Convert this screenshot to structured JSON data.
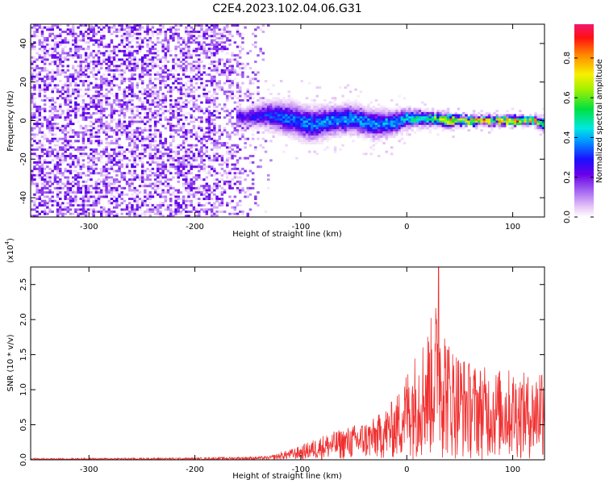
{
  "title": "C2E4.2023.102.04.06.G31",
  "colorbar": {
    "label": "Normalized spectral amplitude",
    "ticks": [
      "0.0",
      "0.2",
      "0.4",
      "0.6",
      "0.8"
    ],
    "tick_values": [
      0.0,
      0.2,
      0.4,
      0.6,
      0.8
    ],
    "range": [
      0.0,
      0.97
    ]
  },
  "chart_data": [
    {
      "type": "heatmap",
      "xlabel": "Height of straight line (km)",
      "ylabel": "Frequency (Hz)",
      "xlim": [
        -355,
        130
      ],
      "ylim": [
        -50,
        50
      ],
      "xticks": [
        -300,
        -200,
        -100,
        0,
        100
      ],
      "yticks": [
        -40,
        -20,
        0,
        20,
        40
      ],
      "xtick_labels": [
        "-300",
        "-200",
        "-100",
        "0",
        "100"
      ],
      "ytick_labels": [
        "-40",
        "-20",
        "0",
        "20",
        "40"
      ],
      "colormap": "rainbow",
      "ridge": [
        {
          "x": -150,
          "freq": 2,
          "halfwidth": 4,
          "amp": 0.28
        },
        {
          "x": -130,
          "freq": 3,
          "halfwidth": 6,
          "amp": 0.35
        },
        {
          "x": -110,
          "freq": 1,
          "halfwidth": 7,
          "amp": 0.4
        },
        {
          "x": -90,
          "freq": -2,
          "halfwidth": 7,
          "amp": 0.4
        },
        {
          "x": -70,
          "freq": 0,
          "halfwidth": 6,
          "amp": 0.42
        },
        {
          "x": -50,
          "freq": 1,
          "halfwidth": 6,
          "amp": 0.42
        },
        {
          "x": -30,
          "freq": -2,
          "halfwidth": 6,
          "amp": 0.42
        },
        {
          "x": -10,
          "freq": -1,
          "halfwidth": 5,
          "amp": 0.45
        },
        {
          "x": 0,
          "freq": 1,
          "halfwidth": 4,
          "amp": 0.5
        },
        {
          "x": 20,
          "freq": 1,
          "halfwidth": 3,
          "amp": 0.6
        },
        {
          "x": 40,
          "freq": 0,
          "halfwidth": 3,
          "amp": 0.8
        },
        {
          "x": 60,
          "freq": 0,
          "halfwidth": 2,
          "amp": 0.85
        },
        {
          "x": 80,
          "freq": 0,
          "halfwidth": 2,
          "amp": 0.9
        },
        {
          "x": 100,
          "freq": 0,
          "halfwidth": 2,
          "amp": 0.9
        },
        {
          "x": 120,
          "freq": 0,
          "halfwidth": 2,
          "amp": 0.85
        },
        {
          "x": 130,
          "freq": -2,
          "halfwidth": 3,
          "amp": 0.5
        }
      ],
      "noise_region_x": [
        -355,
        -125
      ],
      "noise_amp": 0.25
    },
    {
      "type": "line",
      "xlabel": "Height of straight line (km)",
      "ylabel": "SNR (10 * v/v)",
      "y_multiplier_label": "(x10",
      "y_multiplier_exp": "4",
      "xlim": [
        -355,
        130
      ],
      "ylim": [
        0,
        2.75
      ],
      "xticks": [
        -300,
        -200,
        -100,
        0,
        100
      ],
      "yticks": [
        0.0,
        0.5,
        1.0,
        1.5,
        2.0,
        2.5
      ],
      "xtick_labels": [
        "-300",
        "-200",
        "-100",
        "0",
        "100"
      ],
      "ytick_labels": [
        "0.0",
        "0.5",
        "1.0",
        "1.5",
        "2.0",
        "2.5"
      ],
      "line_color": "#f03030",
      "envelope": [
        {
          "x": -355,
          "y": 0.02
        },
        {
          "x": -200,
          "y": 0.03
        },
        {
          "x": -130,
          "y": 0.05
        },
        {
          "x": -100,
          "y": 0.2
        },
        {
          "x": -80,
          "y": 0.35
        },
        {
          "x": -50,
          "y": 0.5
        },
        {
          "x": -30,
          "y": 0.6
        },
        {
          "x": -10,
          "y": 0.9
        },
        {
          "x": 0,
          "y": 1.3
        },
        {
          "x": 10,
          "y": 1.6
        },
        {
          "x": 20,
          "y": 1.9
        },
        {
          "x": 30,
          "y": 2.4
        },
        {
          "x": 40,
          "y": 1.7
        },
        {
          "x": 60,
          "y": 1.4
        },
        {
          "x": 80,
          "y": 1.3
        },
        {
          "x": 100,
          "y": 1.3
        },
        {
          "x": 120,
          "y": 1.2
        },
        {
          "x": 130,
          "y": 1.6
        }
      ],
      "peak": {
        "x": 30,
        "y": 2.75
      }
    }
  ]
}
